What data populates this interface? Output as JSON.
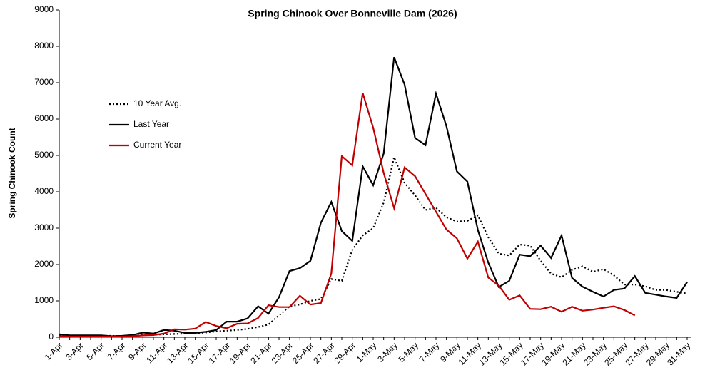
{
  "chart_data": {
    "type": "line",
    "title": "Spring Chinook Over Bonneville Dam (2026)",
    "y_label": "Spring Chinook Count",
    "categories": [
      "1-Apr",
      null,
      "3-Apr",
      null,
      "5-Apr",
      null,
      "7-Apr",
      null,
      "9-Apr",
      null,
      "11-Apr",
      null,
      "13-Apr",
      null,
      "15-Apr",
      null,
      "17-Apr",
      null,
      "19-Apr",
      null,
      "21-Apr",
      null,
      "23-Apr",
      null,
      "25-Apr",
      null,
      "27-Apr",
      null,
      "29-Apr",
      null,
      "1-May",
      null,
      "3-May",
      null,
      "5-May",
      null,
      "7-May",
      null,
      "9-May",
      null,
      "11-May",
      null,
      "13-May",
      null,
      "15-May",
      null,
      "17-May",
      null,
      "19-May",
      null,
      "21-May",
      null,
      "23-May",
      null,
      "25-May",
      null,
      "27-May",
      null,
      "29-May",
      null,
      "31-May"
    ],
    "series": [
      {
        "name": "10 Year Avg.",
        "color": "#000000",
        "style": "dotted",
        "values": [
          50,
          40,
          40,
          40,
          40,
          40,
          30,
          40,
          60,
          70,
          80,
          90,
          100,
          110,
          130,
          160,
          180,
          200,
          230,
          280,
          350,
          600,
          850,
          900,
          1000,
          1050,
          1600,
          1550,
          2400,
          2800,
          3000,
          3700,
          4950,
          4250,
          3900,
          3500,
          3560,
          3300,
          3180,
          3200,
          3350,
          2750,
          2300,
          2250,
          2550,
          2520,
          2100,
          1750,
          1650,
          1850,
          1950,
          1800,
          1870,
          1700,
          1450,
          1450,
          1400,
          1300,
          1300,
          1250,
          1200
        ]
      },
      {
        "name": "Last Year",
        "color": "#000000",
        "style": "solid",
        "values": [
          80,
          50,
          50,
          50,
          50,
          30,
          40,
          60,
          130,
          100,
          200,
          180,
          120,
          120,
          150,
          200,
          430,
          430,
          520,
          850,
          650,
          1100,
          1820,
          1900,
          2100,
          3150,
          3720,
          2920,
          2650,
          4700,
          4180,
          5050,
          7700,
          6950,
          5480,
          5280,
          6700,
          5800,
          4560,
          4280,
          2950,
          2050,
          1380,
          1550,
          2270,
          2230,
          2520,
          2180,
          2800,
          1630,
          1390,
          1250,
          1120,
          1300,
          1340,
          1680,
          1220,
          1170,
          1120,
          1080,
          1520
        ]
      },
      {
        "name": "Current Year",
        "color": "#c00000",
        "style": "solid",
        "values": [
          30,
          20,
          20,
          20,
          20,
          20,
          20,
          30,
          50,
          60,
          100,
          220,
          210,
          240,
          420,
          310,
          250,
          370,
          380,
          530,
          880,
          830,
          830,
          1140,
          900,
          940,
          1750,
          4980,
          4730,
          6720,
          5760,
          4520,
          3550,
          4670,
          4430,
          3940,
          3450,
          2960,
          2720,
          2160,
          2630,
          1640,
          1420,
          1030,
          1150,
          780,
          770,
          840,
          700,
          840,
          730,
          760,
          810,
          850,
          750,
          600,
          null,
          null,
          null,
          null,
          null
        ]
      }
    ],
    "ylim": [
      0,
      9000
    ],
    "yticks": [
      0,
      1000,
      2000,
      3000,
      4000,
      5000,
      6000,
      7000,
      8000,
      9000
    ]
  }
}
